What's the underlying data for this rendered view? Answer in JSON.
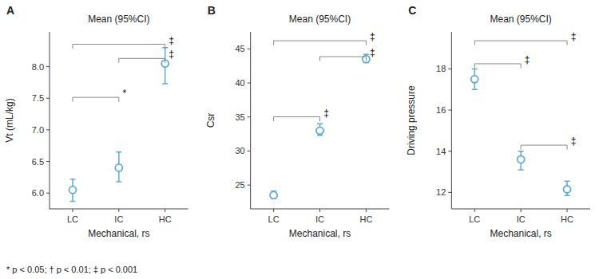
{
  "chart_data": [
    {
      "type": "point",
      "panel_label": "A",
      "title": "Mean (95%CI)",
      "xlabel": "Mechanical, rs",
      "ylabel": "Vt (mL/kg)",
      "categories": [
        "LC",
        "IC",
        "HC"
      ],
      "values": [
        6.05,
        6.4,
        8.05
      ],
      "ci_low": [
        5.87,
        6.18,
        7.73
      ],
      "ci_high": [
        6.22,
        6.65,
        8.3
      ],
      "color": "#5aabdc",
      "ylim": [
        5.75,
        8.55
      ],
      "yticks": [
        {
          "value": 6.0,
          "label": "6.0"
        },
        6.5,
        {
          "value": 7.0,
          "label": "7.0"
        },
        7.5,
        {
          "value": 8.0,
          "label": "8.0"
        }
      ],
      "annotations": [
        {
          "from": "LC",
          "to": "IC",
          "y": 7.514,
          "label": "*"
        },
        {
          "from": "LC",
          "to": "HC",
          "y": 8.354,
          "label": "‡"
        },
        {
          "from": "IC",
          "to": "HC",
          "y": 8.13,
          "label": "‡"
        }
      ]
    },
    {
      "type": "point",
      "panel_label": "B",
      "title": "Mean (95%CI)",
      "xlabel": "Mechanical, rs",
      "ylabel": "Csr",
      "categories": [
        "LC",
        "IC",
        "HC"
      ],
      "values": [
        23.5,
        33.0,
        43.5
      ],
      "ci_low": [
        23.0,
        32.3,
        43.0
      ],
      "ci_high": [
        24.1,
        34.0,
        44.2
      ],
      "color": "#5aabdc",
      "ylim": [
        21.5,
        47.5
      ],
      "yticks": [
        25,
        30,
        35,
        40,
        45
      ],
      "annotations": [
        {
          "from": "LC",
          "to": "IC",
          "y": 35.02,
          "label": "‡"
        },
        {
          "from": "LC",
          "to": "HC",
          "y": 46.2,
          "label": "‡"
        },
        {
          "from": "IC",
          "to": "HC",
          "y": 43.86,
          "label": "‡"
        }
      ]
    },
    {
      "type": "point",
      "panel_label": "C",
      "title": "Mean (95%CI)",
      "xlabel": "Mechanical, rs",
      "ylabel": "Driving pressure",
      "categories": [
        "LC",
        "IC",
        "HC"
      ],
      "values": [
        17.5,
        13.6,
        12.15
      ],
      "ci_low": [
        17.0,
        13.1,
        11.85
      ],
      "ci_high": [
        18.0,
        14.0,
        12.55
      ],
      "color": "#5aabdc",
      "ylim": [
        11.2,
        19.8
      ],
      "yticks": [
        12,
        14,
        16,
        18
      ],
      "annotations": [
        {
          "from": "LC",
          "to": "IC",
          "y": 18.252,
          "label": "‡"
        },
        {
          "from": "LC",
          "to": "HC",
          "y": 19.37,
          "label": "‡"
        },
        {
          "from": "IC",
          "to": "HC",
          "y": 14.296,
          "label": "‡"
        }
      ]
    }
  ],
  "footnote": "* p < 0.05; † p < 0.01; ‡ p < 0.001"
}
